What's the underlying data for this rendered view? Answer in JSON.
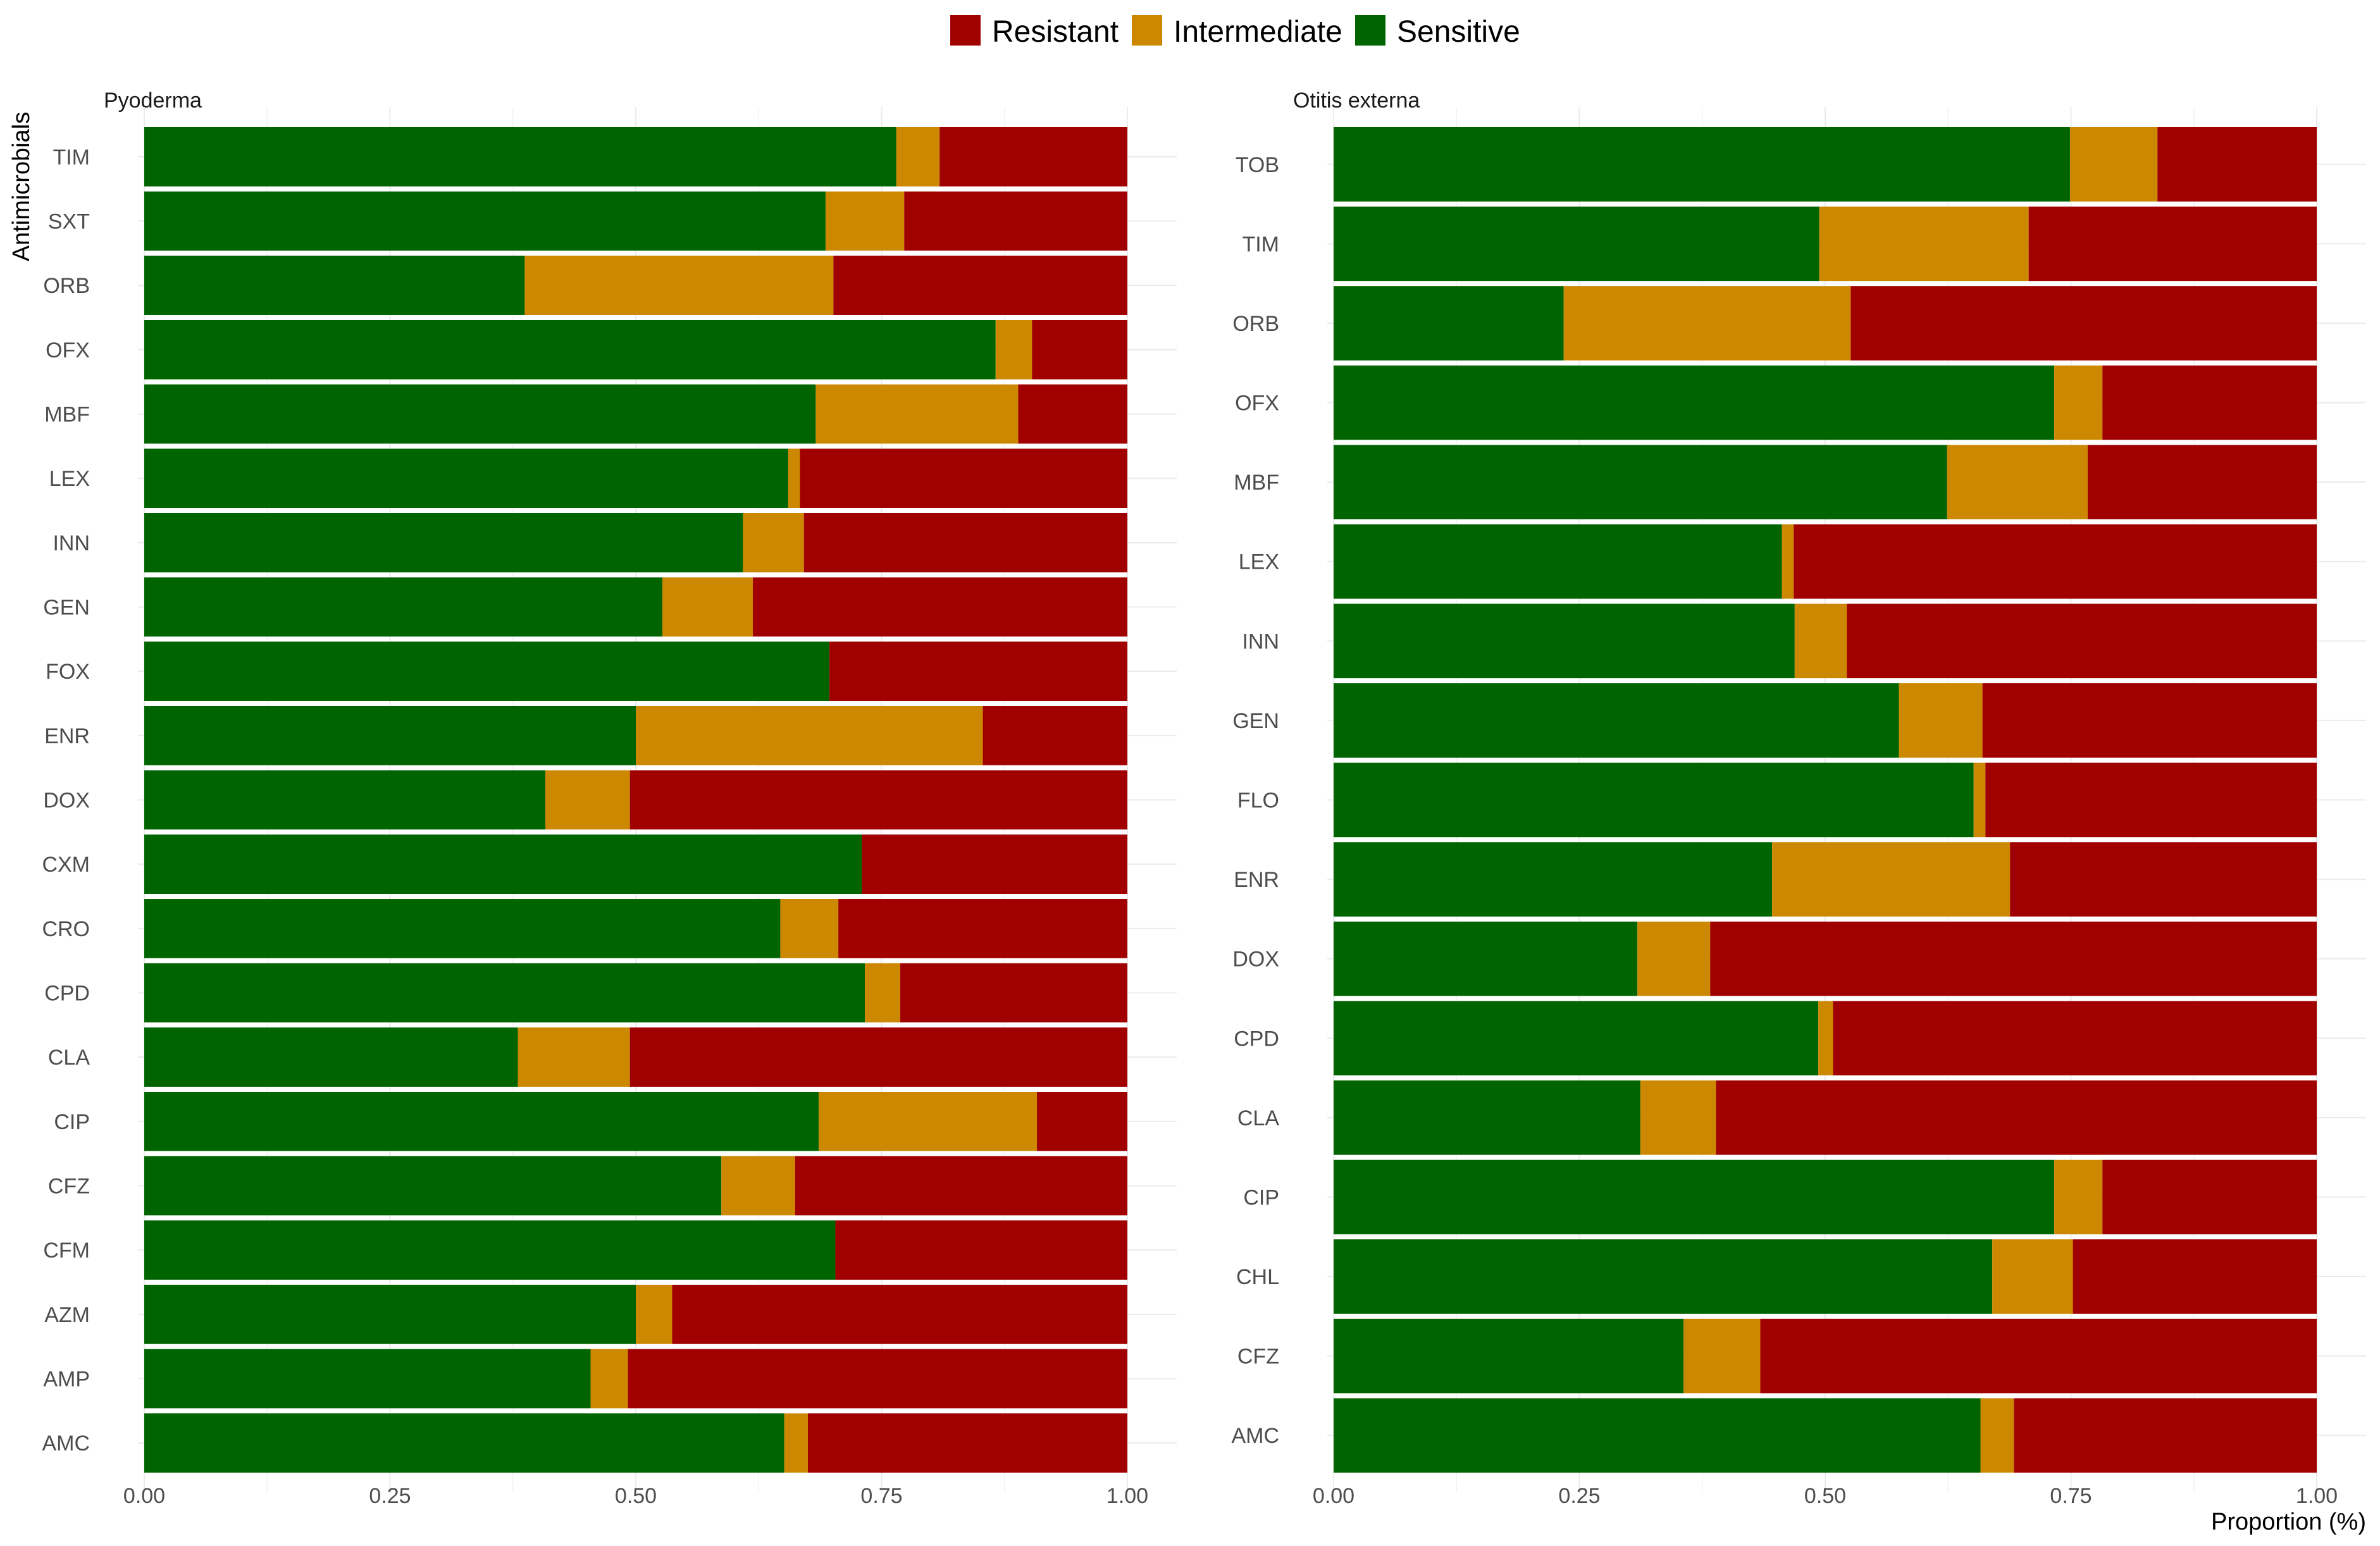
{
  "legend": {
    "items": [
      {
        "label": "Resistant",
        "color": "#a00000"
      },
      {
        "label": "Intermediate",
        "color": "#cc8800"
      },
      {
        "label": "Sensitive",
        "color": "#006400"
      }
    ]
  },
  "axes": {
    "ylabel": "Antimicrobials",
    "xlabel": "Proportion (%)",
    "xticks": [
      "0.00",
      "0.25",
      "0.50",
      "0.75",
      "1.00"
    ]
  },
  "chart_data": [
    {
      "type": "bar",
      "orientation": "horizontal",
      "stacked": true,
      "title": "Pyoderma",
      "xlabel": "",
      "ylabel": "Antimicrobials",
      "xlim": [
        0,
        1
      ],
      "categories": [
        "TIM",
        "SXT",
        "ORB",
        "OFX",
        "MBF",
        "LEX",
        "INN",
        "GEN",
        "FOX",
        "ENR",
        "DOX",
        "CXM",
        "CRO",
        "CPD",
        "CLA",
        "CIP",
        "CFZ",
        "CFM",
        "AZM",
        "AMP",
        "AMC"
      ],
      "series": [
        {
          "name": "Sensitive",
          "color": "#006400",
          "values": [
            0.765,
            0.693,
            0.387,
            0.866,
            0.683,
            0.655,
            0.609,
            0.527,
            0.697,
            0.5,
            0.408,
            0.73,
            0.647,
            0.733,
            0.38,
            0.686,
            0.587,
            0.703,
            0.5,
            0.454,
            0.651
          ]
        },
        {
          "name": "Intermediate",
          "color": "#cc8800",
          "values": [
            0.044,
            0.08,
            0.314,
            0.037,
            0.206,
            0.012,
            0.062,
            0.092,
            0.0,
            0.353,
            0.086,
            0.0,
            0.059,
            0.036,
            0.114,
            0.222,
            0.075,
            0.0,
            0.037,
            0.038,
            0.024
          ]
        },
        {
          "name": "Resistant",
          "color": "#a00000",
          "values": [
            0.191,
            0.227,
            0.299,
            0.097,
            0.111,
            0.333,
            0.329,
            0.381,
            0.303,
            0.147,
            0.506,
            0.27,
            0.294,
            0.231,
            0.506,
            0.092,
            0.338,
            0.297,
            0.463,
            0.508,
            0.325
          ]
        }
      ]
    },
    {
      "type": "bar",
      "orientation": "horizontal",
      "stacked": true,
      "title": "Otitis externa",
      "xlabel": "Proportion (%)",
      "ylabel": "",
      "xlim": [
        0,
        1
      ],
      "categories": [
        "TOB",
        "TIM",
        "ORB",
        "OFX",
        "MBF",
        "LEX",
        "INN",
        "GEN",
        "FLO",
        "ENR",
        "DOX",
        "CPD",
        "CLA",
        "CIP",
        "CHL",
        "CFZ",
        "AMC"
      ],
      "series": [
        {
          "name": "Sensitive",
          "color": "#006400",
          "values": [
            0.749,
            0.494,
            0.234,
            0.733,
            0.624,
            0.456,
            0.469,
            0.575,
            0.651,
            0.446,
            0.309,
            0.493,
            0.312,
            0.733,
            0.67,
            0.356,
            0.658
          ]
        },
        {
          "name": "Intermediate",
          "color": "#cc8800",
          "values": [
            0.089,
            0.213,
            0.292,
            0.049,
            0.143,
            0.012,
            0.053,
            0.085,
            0.012,
            0.242,
            0.074,
            0.015,
            0.077,
            0.049,
            0.082,
            0.078,
            0.034
          ]
        },
        {
          "name": "Resistant",
          "color": "#a00000",
          "values": [
            0.162,
            0.293,
            0.474,
            0.218,
            0.233,
            0.532,
            0.478,
            0.34,
            0.337,
            0.312,
            0.617,
            0.492,
            0.611,
            0.218,
            0.248,
            0.566,
            0.308
          ]
        }
      ]
    }
  ]
}
